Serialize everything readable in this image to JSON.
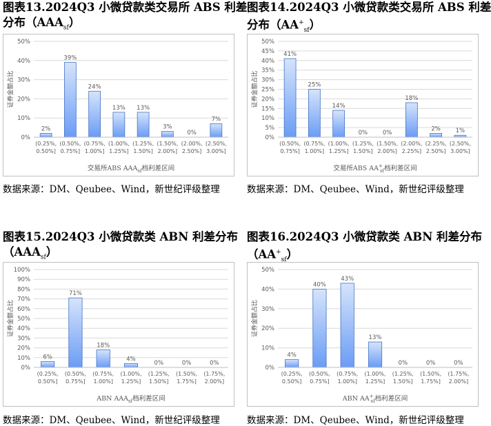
{
  "source_text": "数据来源：DM、Qeubee、Wind，新世纪评级整理",
  "panels": [
    {
      "title1": "图表13.2024Q3 小微贷款类交易所 ABS 利差",
      "title2a": "分布（AAA",
      "title2sub": "sf",
      "title2sup": "",
      "title2b": "）",
      "ylabel": "证券金额占比",
      "xlabel_a": "交易所ABS AAA",
      "xlabel_sub": "sf",
      "xlabel_sup": "",
      "xlabel_b": "档利差区间"
    },
    {
      "title1": "图表14.2024Q3 小微贷款类交易所 ABS 利差",
      "title2a": "分布（AA",
      "title2sub": "sf",
      "title2sup": "+",
      "title2b": "）",
      "ylabel": "证券金额占比",
      "xlabel_a": "交易所ABS AA",
      "xlabel_sub": "sf",
      "xlabel_sup": "+",
      "xlabel_b": "档利差区间"
    },
    {
      "title1": "图表15.2024Q3 小微贷款类 ABN 利差分布",
      "title2a": "（AAA",
      "title2sub": "sf",
      "title2sup": "",
      "title2b": "）",
      "ylabel": "证券金额占比",
      "xlabel_a": "ABN AAA",
      "xlabel_sub": "sf",
      "xlabel_sup": "",
      "xlabel_b": "档利差区间"
    },
    {
      "title1": "图表16.2024Q3 小微贷款类 ABN 利差分布",
      "title2a": "（AA",
      "title2sub": "sf",
      "title2sup": "+",
      "title2b": "）",
      "ylabel": "证券金额占比",
      "xlabel_a": "ABN AA",
      "xlabel_sub": "sf",
      "xlabel_sup": "+",
      "xlabel_b": "档利差区间"
    }
  ],
  "colors": {
    "bar_top": "#d6e4fb",
    "bar_bottom": "#6a9cf5",
    "bar_stroke": "#4472c4",
    "grid": "#d9d9d9",
    "axis_text": "#595959"
  },
  "chart_data": [
    {
      "type": "bar",
      "categories": [
        [
          "(0.25%,",
          "0.50%]"
        ],
        [
          "(0.50%,",
          "0.75%]"
        ],
        [
          "(0.75%,",
          "1.00%]"
        ],
        [
          "(1.00%,",
          "1.25%]"
        ],
        [
          "(1.25%,",
          "1.50%]"
        ],
        [
          "(1.50%,",
          "2.00%]"
        ],
        [
          "(2.00%,",
          "2.50%]"
        ],
        [
          "(2.50%,",
          "3.00%]"
        ]
      ],
      "values": [
        2,
        39,
        24,
        13,
        13,
        3,
        0,
        7
      ],
      "labels": [
        "2%",
        "39%",
        "24%",
        "13%",
        "13%",
        "3%",
        "0%",
        "7%"
      ],
      "yticks": [
        "0%",
        "10%",
        "20%",
        "30%",
        "40%",
        "50%"
      ],
      "ylim": [
        0,
        50
      ],
      "grid": true
    },
    {
      "type": "bar",
      "categories": [
        [
          "(0.50%,",
          "0.75%]"
        ],
        [
          "(0.75%,",
          "1.00%]"
        ],
        [
          "(1.00%,",
          "1.25%]"
        ],
        [
          "(1.25%,",
          "1.50%]"
        ],
        [
          "(1.50%,",
          "2.00%]"
        ],
        [
          "(2.00%,",
          "2.25%]"
        ],
        [
          "(2.25%,",
          "2.50%]"
        ],
        [
          "(2.50%,",
          "3.00%]"
        ]
      ],
      "values": [
        41,
        25,
        14,
        0,
        0,
        18,
        2,
        1
      ],
      "labels": [
        "41%",
        "25%",
        "14%",
        "0%",
        "0%",
        "18%",
        "2%",
        "1%"
      ],
      "yticks": [
        "0%",
        "5%",
        "10%",
        "15%",
        "20%",
        "25%",
        "30%",
        "35%",
        "40%",
        "45%",
        "50%"
      ],
      "ylim": [
        0,
        50
      ],
      "grid": true
    },
    {
      "type": "bar",
      "categories": [
        [
          "(0.25%,",
          "0.50%]"
        ],
        [
          "(0.50%,",
          "0.75%]"
        ],
        [
          "(0.75%,",
          "1.00%]"
        ],
        [
          "(1.00%,",
          "1.25%]"
        ],
        [
          "(1.25%,",
          "1.50%]"
        ],
        [
          "(1.50%,",
          "1.75%]"
        ],
        [
          "(1.75%,",
          "2.00%]"
        ]
      ],
      "values": [
        6,
        71,
        18,
        4,
        0,
        0,
        0
      ],
      "labels": [
        "6%",
        "71%",
        "18%",
        "4%",
        "0%",
        "0%",
        "0%"
      ],
      "yticks": [
        "0%",
        "10%",
        "20%",
        "30%",
        "40%",
        "50%",
        "60%",
        "70%",
        "80%",
        "90%",
        "100%"
      ],
      "ylim": [
        0,
        100
      ],
      "grid": true
    },
    {
      "type": "bar",
      "categories": [
        [
          "(0.25%,",
          "0.50%]"
        ],
        [
          "(0.50%,",
          "0.75%]"
        ],
        [
          "(0.75%,",
          "1.00%]"
        ],
        [
          "(1.00%,",
          "1.25%]"
        ],
        [
          "(1.25%,",
          "1.50%]"
        ],
        [
          "(1.50%,",
          "1.75%]"
        ],
        [
          "(1.75%,",
          "2.00%]"
        ]
      ],
      "values": [
        4,
        40,
        43,
        13,
        0,
        0,
        0
      ],
      "labels": [
        "4%",
        "40%",
        "43%",
        "13%",
        "0%",
        "0%",
        "0%"
      ],
      "yticks": [
        "0%",
        "10%",
        "20%",
        "30%",
        "40%",
        "50%"
      ],
      "ylim": [
        0,
        50
      ],
      "grid": true
    }
  ]
}
